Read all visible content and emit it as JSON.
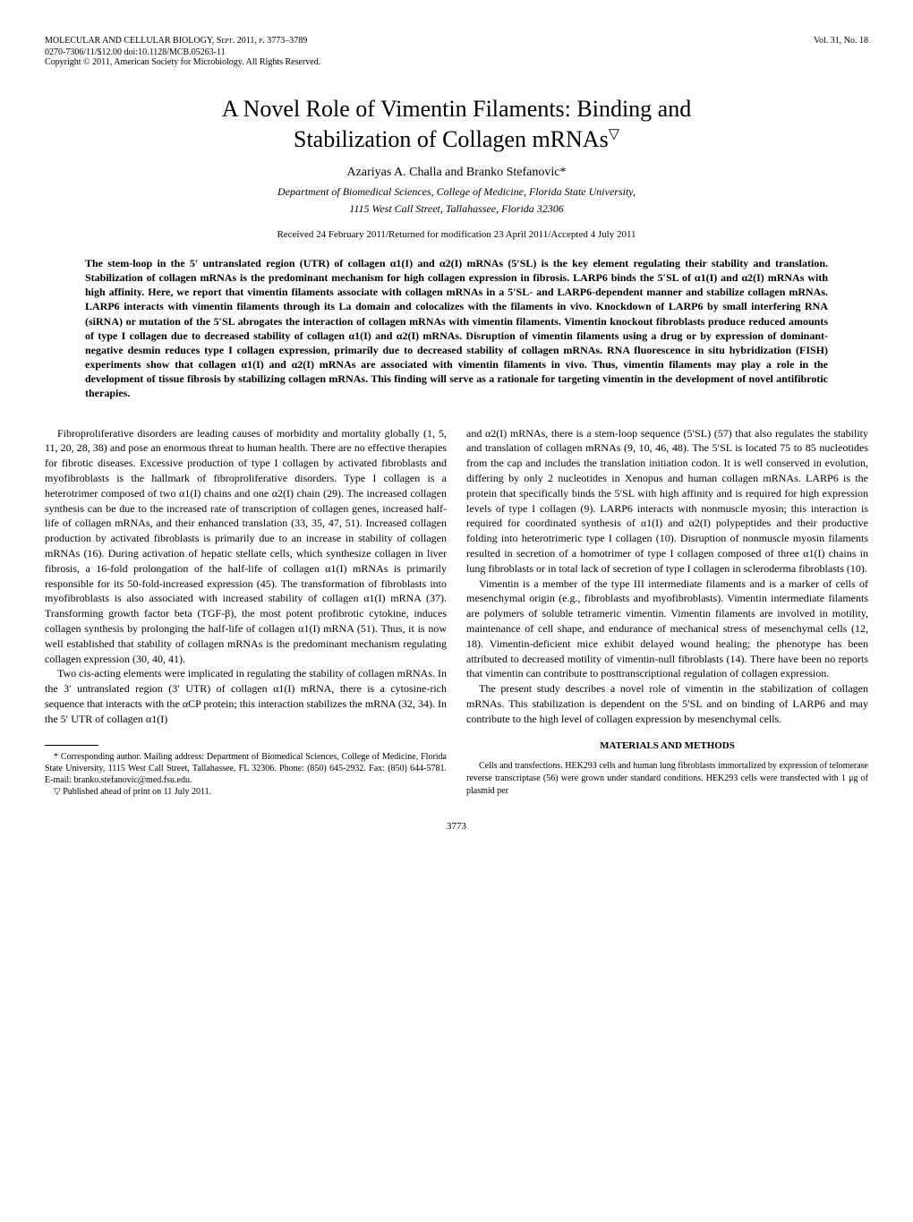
{
  "header": {
    "journal": "MOLECULAR AND CELLULAR BIOLOGY, Sept. 2011, p. 3773–3789",
    "issn_doi": "0270-7306/11/$12.00   doi:10.1128/MCB.05263-11",
    "copyright": "Copyright © 2011, American Society for Microbiology. All Rights Reserved.",
    "volume": "Vol. 31, No. 18"
  },
  "title_line1": "A Novel Role of Vimentin Filaments: Binding and",
  "title_line2": "Stabilization of Collagen mRNAs",
  "title_sup": "▽",
  "authors": "Azariyas A. Challa and Branko Stefanovic*",
  "affiliation_line1": "Department of Biomedical Sciences, College of Medicine, Florida State University,",
  "affiliation_line2": "1115 West Call Street, Tallahassee, Florida 32306",
  "dates": "Received 24 February 2011/Returned for modification 23 April 2011/Accepted 4 July 2011",
  "abstract": "The stem-loop in the 5′ untranslated region (UTR) of collagen α1(I) and α2(I) mRNAs (5′SL) is the key element regulating their stability and translation. Stabilization of collagen mRNAs is the predominant mechanism for high collagen expression in fibrosis. LARP6 binds the 5′SL of α1(I) and α2(I) mRNAs with high affinity. Here, we report that vimentin filaments associate with collagen mRNAs in a 5′SL- and LARP6-dependent manner and stabilize collagen mRNAs. LARP6 interacts with vimentin filaments through its La domain and colocalizes with the filaments in vivo. Knockdown of LARP6 by small interfering RNA (siRNA) or mutation of the 5′SL abrogates the interaction of collagen mRNAs with vimentin filaments. Vimentin knockout fibroblasts produce reduced amounts of type I collagen due to decreased stability of collagen α1(I) and α2(I) mRNAs. Disruption of vimentin filaments using a drug or by expression of dominant-negative desmin reduces type I collagen expression, primarily due to decreased stability of collagen mRNAs. RNA fluorescence in situ hybridization (FISH) experiments show that collagen α1(I) and α2(I) mRNAs are associated with vimentin filaments in vivo. Thus, vimentin filaments may play a role in the development of tissue fibrosis by stabilizing collagen mRNAs. This finding will serve as a rationale for targeting vimentin in the development of novel antifibrotic therapies.",
  "body_left": {
    "p1": "Fibroproliferative disorders are leading causes of morbidity and mortality globally (1, 5, 11, 20, 28, 38) and pose an enormous threat to human health. There are no effective therapies for fibrotic diseases. Excessive production of type I collagen by activated fibroblasts and myofibroblasts is the hallmark of fibroproliferative disorders. Type I collagen is a heterotrimer composed of two α1(I) chains and one α2(I) chain (29). The increased collagen synthesis can be due to the increased rate of transcription of collagen genes, increased half-life of collagen mRNAs, and their enhanced translation (33, 35, 47, 51). Increased collagen production by activated fibroblasts is primarily due to an increase in stability of collagen mRNAs (16). During activation of hepatic stellate cells, which synthesize collagen in liver fibrosis, a 16-fold prolongation of the half-life of collagen α1(I) mRNAs is primarily responsible for its 50-fold-increased expression (45). The transformation of fibroblasts into myofibroblasts is also associated with increased stability of collagen α1(I) mRNA (37). Transforming growth factor beta (TGF-β), the most potent profibrotic cytokine, induces collagen synthesis by prolonging the half-life of collagen α1(I) mRNA (51). Thus, it is now well established that stability of collagen mRNAs is the predominant mechanism regulating collagen expression (30, 40, 41).",
    "p2": "Two cis-acting elements were implicated in regulating the stability of collagen mRNAs. In the 3′ untranslated region (3′ UTR) of collagen α1(I) mRNA, there is a cytosine-rich sequence that interacts with the αCP protein; this interaction stabilizes the mRNA (32, 34). In the 5′ UTR of collagen α1(I)"
  },
  "body_right": {
    "p1": "and α2(I) mRNAs, there is a stem-loop sequence (5′SL) (57) that also regulates the stability and translation of collagen mRNAs (9, 10, 46, 48). The 5′SL is located 75 to 85 nucleotides from the cap and includes the translation initiation codon. It is well conserved in evolution, differing by only 2 nucleotides in Xenopus and human collagen mRNAs. LARP6 is the protein that specifically binds the 5′SL with high affinity and is required for high expression levels of type I collagen (9). LARP6 interacts with nonmuscle myosin; this interaction is required for coordinated synthesis of α1(I) and α2(I) polypeptides and their productive folding into heterotrimeric type I collagen (10). Disruption of nonmuscle myosin filaments resulted in secretion of a homotrimer of type I collagen composed of three α1(I) chains in lung fibroblasts or in total lack of secretion of type I collagen in scleroderma fibroblasts (10).",
    "p2": "Vimentin is a member of the type III intermediate filaments and is a marker of cells of mesenchymal origin (e.g., fibroblasts and myofibroblasts). Vimentin intermediate filaments are polymers of soluble tetrameric vimentin. Vimentin filaments are involved in motility, maintenance of cell shape, and endurance of mechanical stress of mesenchymal cells (12, 18). Vimentin-deficient mice exhibit delayed wound healing; the phenotype has been attributed to decreased motility of vimentin-null fibroblasts (14). There have been no reports that vimentin can contribute to posttranscriptional regulation of collagen expression.",
    "p3": "The present study describes a novel role of vimentin in the stabilization of collagen mRNAs. This stabilization is dependent on the 5′SL and on binding of LARP6 and may contribute to the high level of collagen expression by mesenchymal cells."
  },
  "materials_head": "MATERIALS AND METHODS",
  "materials_p1": "Cells and transfections. HEK293 cells and human lung fibroblasts immortalized by expression of telomerase reverse transcriptase (56) were grown under standard conditions. HEK293 cells were transfected with 1 μg of plasmid per",
  "footnotes": {
    "corr": "* Corresponding author. Mailing address: Department of Biomedical Sciences, College of Medicine, Florida State University, 1115 West Call Street, Tallahassee, FL 32306. Phone: (850) 645-2932. Fax: (850) 644-5781. E-mail: branko.stefanovic@med.fsu.edu.",
    "pub": "▽ Published ahead of print on 11 July 2011."
  },
  "page_number": "3773"
}
